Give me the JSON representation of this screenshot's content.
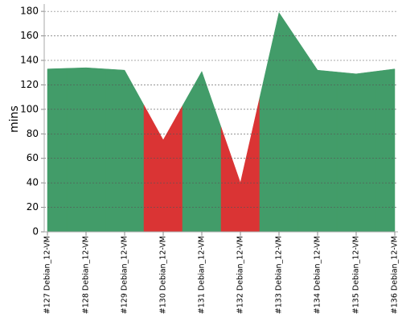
{
  "chart_data": {
    "type": "area",
    "y_label": "mins",
    "categories": [
      "#127 Debian_12-VM",
      "#128 Debian_12-VM",
      "#129 Debian_12-VM",
      "#130 Debian_12-VM",
      "#131 Debian_12-VM",
      "#132 Debian_12-VM",
      "#133 Debian_12-VM",
      "#134 Debian_12-VM",
      "#135 Debian_12-VM",
      "#136 Debian_12-VM"
    ],
    "values": [
      133,
      134,
      132,
      75,
      131,
      40,
      179,
      132,
      129,
      133
    ],
    "point_colors": [
      "#429c69",
      "#429c69",
      "#429c69",
      "#da3434",
      "#429c69",
      "#da3434",
      "#429c69",
      "#429c69",
      "#429c69",
      "#429c69"
    ],
    "ylim": [
      0,
      186
    ],
    "yticks": [
      0,
      20,
      40,
      60,
      80,
      100,
      120,
      140,
      160,
      180
    ],
    "grid": true
  }
}
